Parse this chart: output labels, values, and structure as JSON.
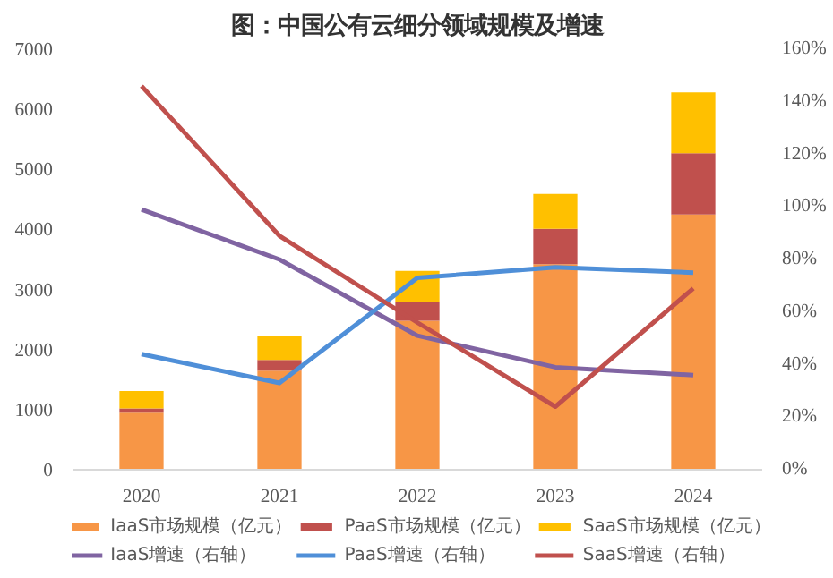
{
  "chart_data": {
    "type": "bar",
    "title": "图：中国公有云细分领域规模及增速",
    "categories": [
      "2020",
      "2021",
      "2022",
      "2023",
      "2024"
    ],
    "stacked": true,
    "ylim": [
      0,
      7000
    ],
    "yticks": [
      0,
      1000,
      2000,
      3000,
      4000,
      5000,
      6000,
      7000
    ],
    "y2lim": [
      0,
      160
    ],
    "y2ticks": [
      {
        "value": 0,
        "label": "0%"
      },
      {
        "value": 20,
        "label": "20%"
      },
      {
        "value": 40,
        "label": "40%"
      },
      {
        "value": 60,
        "label": "60%"
      },
      {
        "value": 80,
        "label": "80%"
      },
      {
        "value": 100,
        "label": "100%"
      },
      {
        "value": 120,
        "label": "120%"
      },
      {
        "value": 140,
        "label": "140%"
      },
      {
        "value": 160,
        "label": "160%"
      }
    ],
    "grid": false,
    "legend": "bottom",
    "series": [
      {
        "name": "IaaS市场规模（亿元）",
        "color": "#f79646",
        "values": [
          950,
          1650,
          2480,
          3420,
          4250
        ]
      },
      {
        "name": "PaaS市场规模（亿元）",
        "color": "#c0504d",
        "values": [
          70,
          180,
          310,
          590,
          1020
        ]
      },
      {
        "name": "SaaS市场规模（亿元）",
        "color": "#ffc000",
        "values": [
          290,
          390,
          520,
          580,
          1010
        ]
      },
      {
        "name": "IaaS增速（右轴）",
        "type": "line",
        "axis": "y2",
        "color": "#8064a2",
        "values": [
          99,
          80,
          51,
          39,
          36
        ]
      },
      {
        "name": "PaaS增速（右轴）",
        "type": "line",
        "axis": "y2",
        "color": "#4f8fd8",
        "values": [
          44,
          33,
          73,
          77,
          75
        ]
      },
      {
        "name": "SaaS增速（右轴）",
        "type": "line",
        "axis": "y2",
        "color": "#c0504d",
        "values": [
          146,
          89,
          56,
          24,
          69
        ]
      }
    ]
  }
}
